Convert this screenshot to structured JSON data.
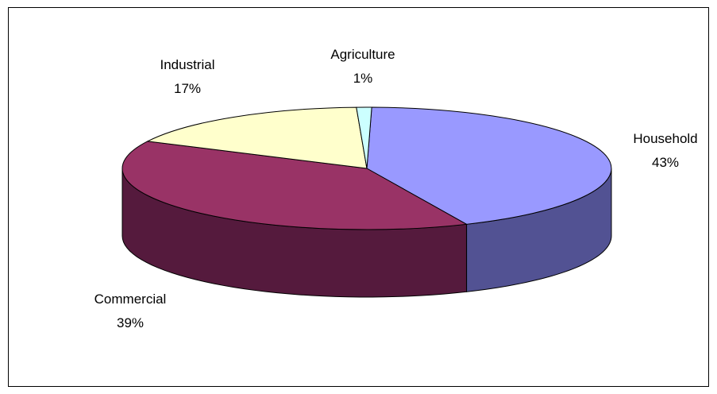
{
  "chart_data": {
    "type": "pie",
    "style": "3d-exploded-none",
    "title": "",
    "legend": "none",
    "slices": [
      {
        "name": "Household",
        "value": 43,
        "label": "43%",
        "color": "#9999ff",
        "side_color": "#525293"
      },
      {
        "name": "Commercial",
        "value": 39,
        "label": "39%",
        "color": "#993366",
        "side_color": "#551a3d"
      },
      {
        "name": "Industrial",
        "value": 17,
        "label": "17%",
        "color": "#ffffcc",
        "side_color": "#cccc99"
      },
      {
        "name": "Agriculture",
        "value": 1,
        "label": "1%",
        "color": "#ccffff",
        "side_color": "#88bbbb"
      }
    ]
  }
}
